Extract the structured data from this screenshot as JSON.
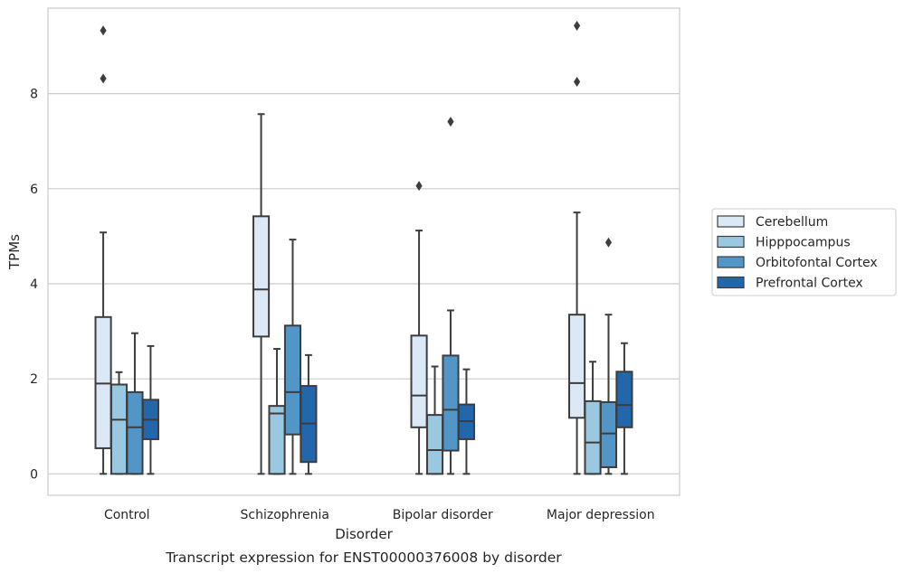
{
  "chart_data": {
    "type": "box",
    "caption": "Transcript expression for ENST00000376008 by disorder",
    "xlabel": "Disorder",
    "ylabel": "TPMs",
    "ylim": [
      -0.45,
      9.8
    ],
    "yticks": [
      0,
      2,
      4,
      6,
      8
    ],
    "grid": "horizontal",
    "legend_placement": "right",
    "categories": [
      "Control",
      "Schizophrenia",
      "Bipolar disorder",
      "Major depression"
    ],
    "series": [
      {
        "name": "Cerebellum",
        "color": "#dbe9f6",
        "boxes": [
          {
            "min": 0,
            "q1": 0.54,
            "median": 1.9,
            "q3": 3.3,
            "max": 5.08,
            "outliers": [
              8.32,
              9.33
            ]
          },
          {
            "min": 0,
            "q1": 2.89,
            "median": 3.88,
            "q3": 5.42,
            "max": 7.57,
            "outliers": []
          },
          {
            "min": 0,
            "q1": 0.98,
            "median": 1.65,
            "q3": 2.91,
            "max": 5.12,
            "outliers": [
              6.06
            ]
          },
          {
            "min": 0,
            "q1": 1.18,
            "median": 1.91,
            "q3": 3.35,
            "max": 5.5,
            "outliers": [
              8.25,
              9.43
            ]
          }
        ]
      },
      {
        "name": "Hipppocampus",
        "color": "#9ac8e0",
        "boxes": [
          {
            "min": 0,
            "q1": 0,
            "median": 1.14,
            "q3": 1.88,
            "max": 2.14,
            "outliers": []
          },
          {
            "min": 0,
            "q1": 0,
            "median": 1.27,
            "q3": 1.43,
            "max": 2.63,
            "outliers": []
          },
          {
            "min": 0,
            "q1": 0,
            "median": 0.5,
            "q3": 1.24,
            "max": 2.26,
            "outliers": []
          },
          {
            "min": 0,
            "q1": 0,
            "median": 0.66,
            "q3": 1.53,
            "max": 2.36,
            "outliers": []
          }
        ]
      },
      {
        "name": "Orbitofontal Cortex",
        "color": "#5296c7",
        "boxes": [
          {
            "min": 0,
            "q1": 0,
            "median": 0.98,
            "q3": 1.72,
            "max": 2.96,
            "outliers": []
          },
          {
            "min": 0,
            "q1": 0.83,
            "median": 1.72,
            "q3": 3.12,
            "max": 4.93,
            "outliers": []
          },
          {
            "min": 0,
            "q1": 0.49,
            "median": 1.35,
            "q3": 2.49,
            "max": 3.44,
            "outliers": [
              7.41
            ]
          },
          {
            "min": 0,
            "q1": 0.14,
            "median": 0.85,
            "q3": 1.51,
            "max": 3.35,
            "outliers": [
              4.87
            ]
          }
        ]
      },
      {
        "name": "Prefrontal Cortex",
        "color": "#2266ac",
        "boxes": [
          {
            "min": 0,
            "q1": 0.73,
            "median": 1.14,
            "q3": 1.56,
            "max": 2.69,
            "outliers": []
          },
          {
            "min": 0,
            "q1": 0.25,
            "median": 1.06,
            "q3": 1.85,
            "max": 2.5,
            "outliers": []
          },
          {
            "min": 0,
            "q1": 0.73,
            "median": 1.11,
            "q3": 1.46,
            "max": 2.2,
            "outliers": []
          },
          {
            "min": 0,
            "q1": 0.98,
            "median": 1.45,
            "q3": 2.15,
            "max": 2.75,
            "outliers": []
          }
        ]
      }
    ]
  }
}
